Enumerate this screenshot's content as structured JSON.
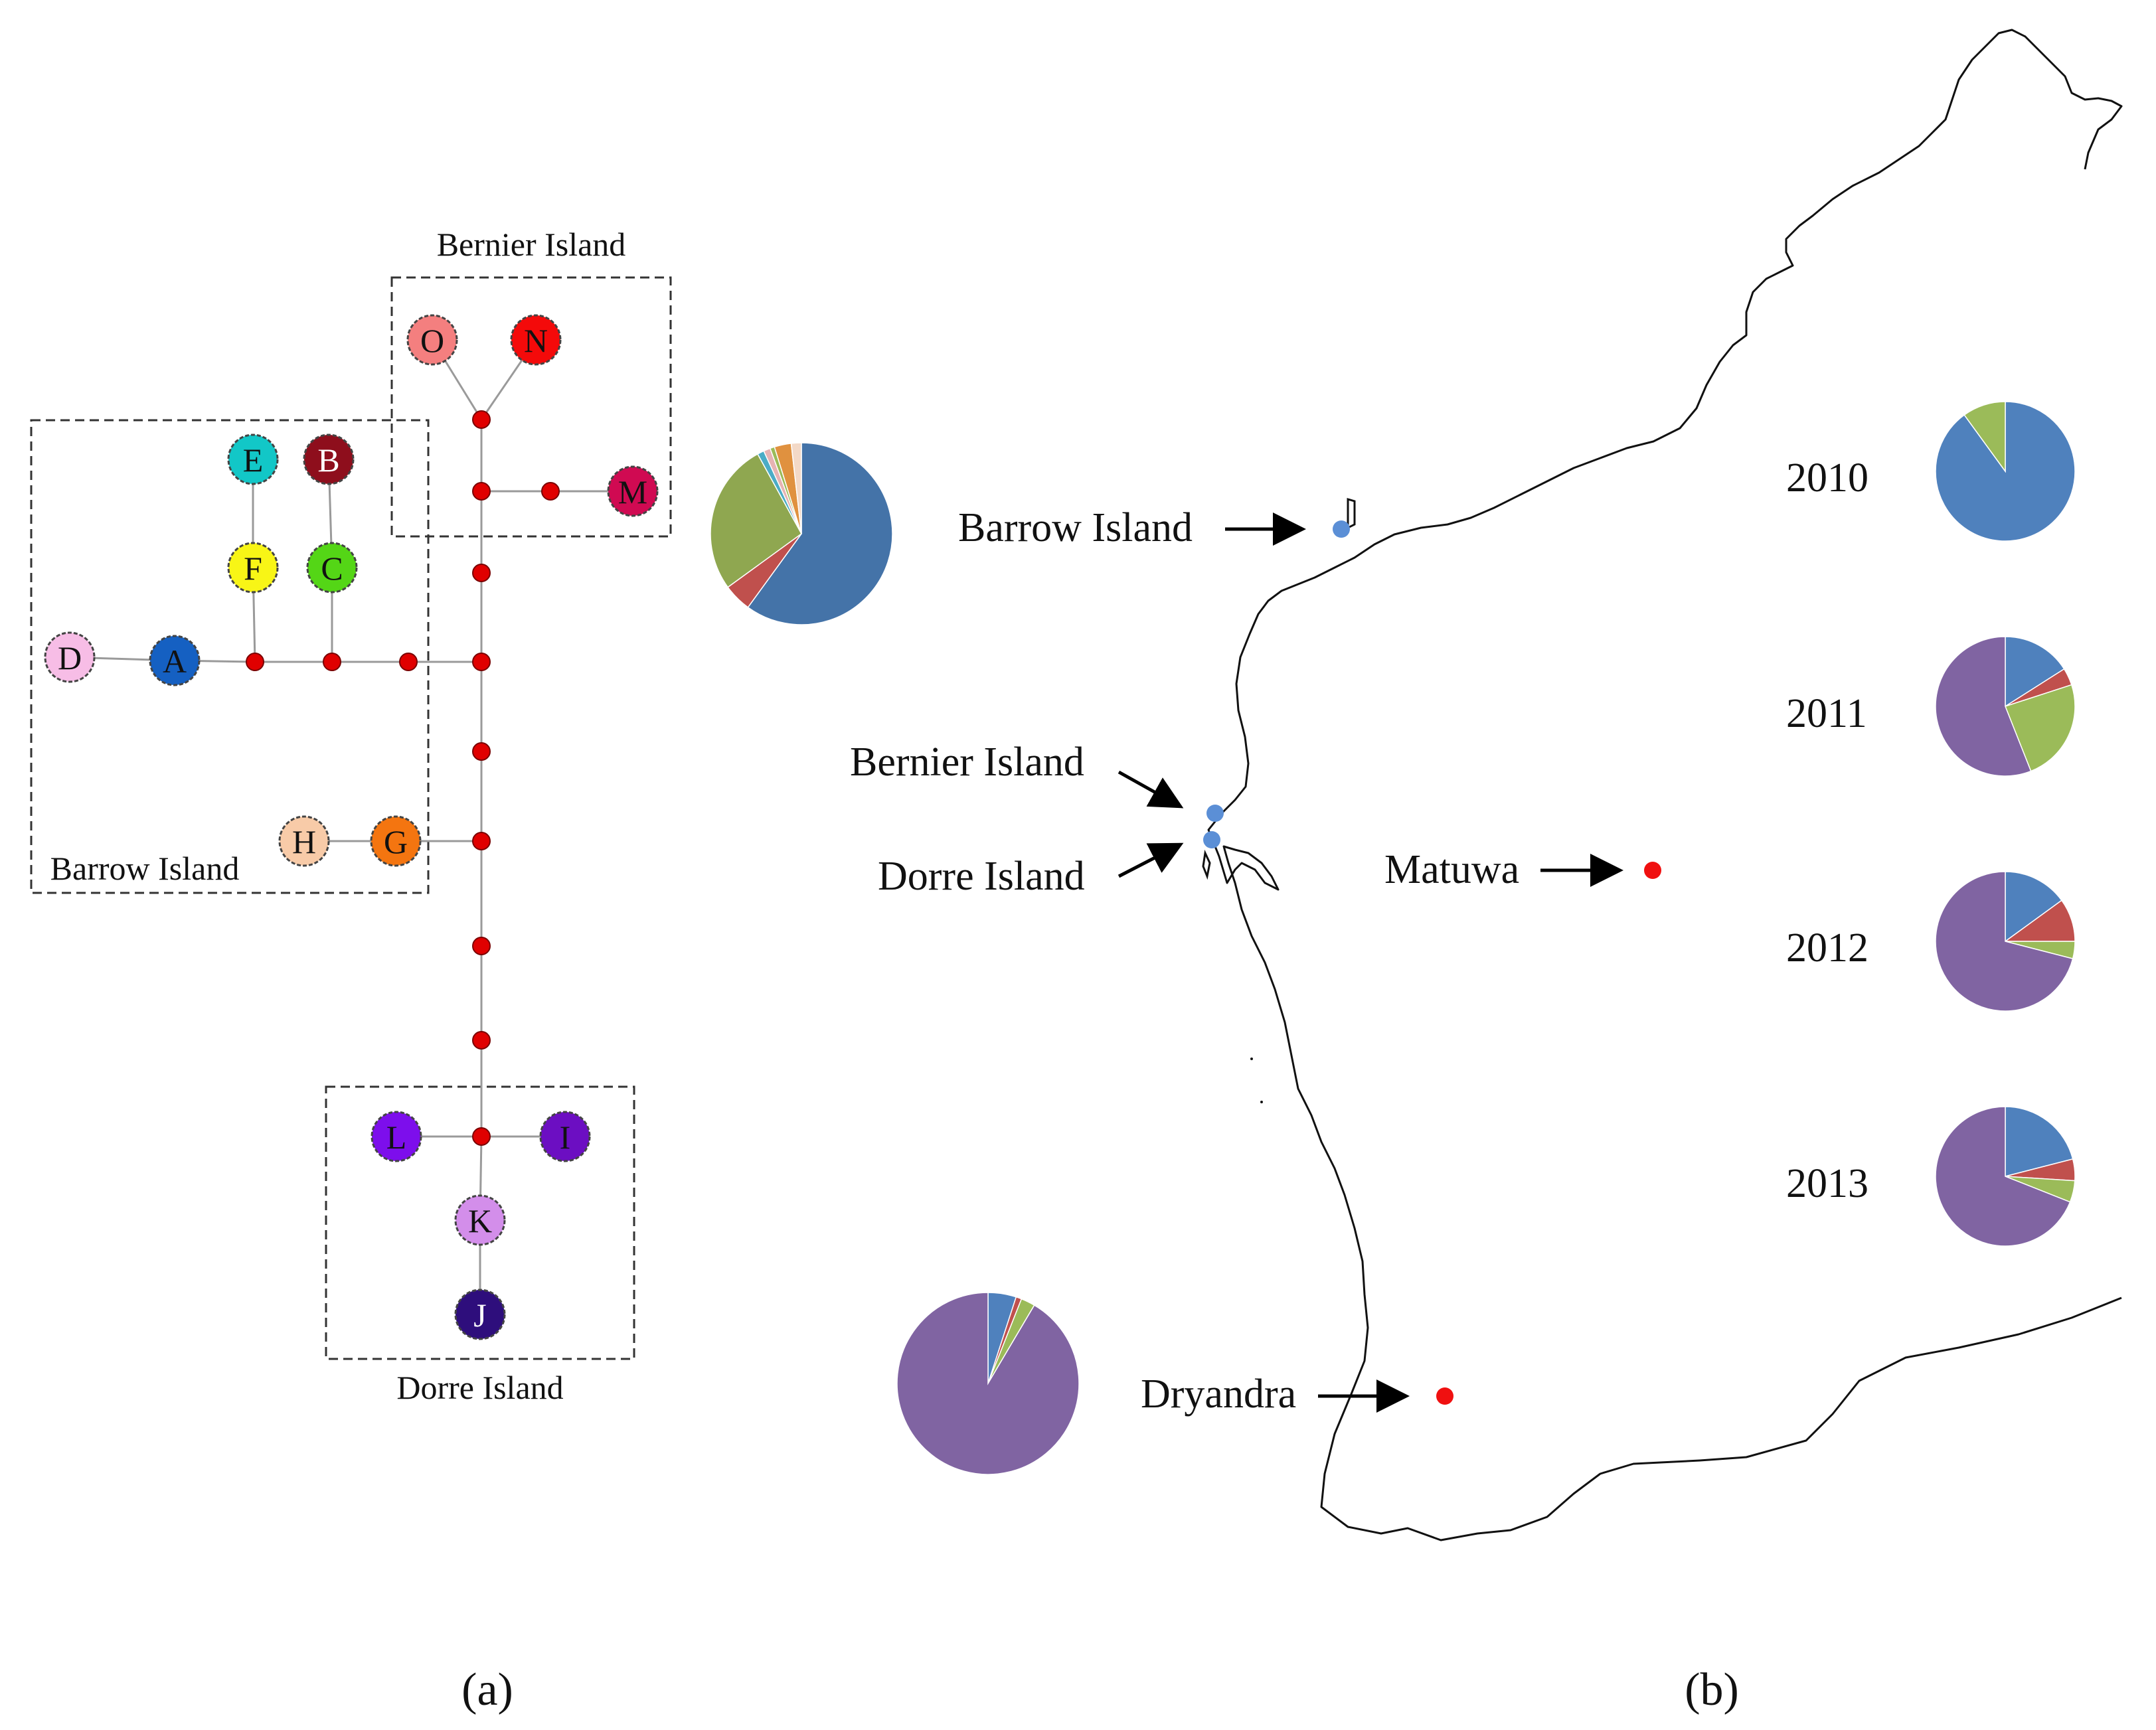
{
  "panel_a": {
    "label": "(a)",
    "group_labels": {
      "bernier": "Bernier Island",
      "barrow": "Barrow Island",
      "dorre": "Dorre Island"
    },
    "haplotypes": {
      "A": {
        "label": "A",
        "color": "#1560C2"
      },
      "B": {
        "label": "B",
        "color": "#8E0E1C"
      },
      "C": {
        "label": "C",
        "color": "#54D616"
      },
      "D": {
        "label": "D",
        "color": "#F7BDE6"
      },
      "E": {
        "label": "E",
        "color": "#12C7C7"
      },
      "F": {
        "label": "F",
        "color": "#F8F516"
      },
      "G": {
        "label": "G",
        "color": "#F47510"
      },
      "H": {
        "label": "H",
        "color": "#F8CBA8"
      },
      "I": {
        "label": "I",
        "color": "#6C0EC2"
      },
      "J": {
        "label": "J",
        "color": "#2E0E7C"
      },
      "K": {
        "label": "K",
        "color": "#D38EEA"
      },
      "L": {
        "label": "L",
        "color": "#7D0EEC"
      },
      "M": {
        "label": "M",
        "color": "#D00A52"
      },
      "N": {
        "label": "N",
        "color": "#F40A0A"
      },
      "O": {
        "label": "O",
        "color": "#F47F7F"
      }
    },
    "median_vector_color": "#E00000",
    "link_color": "#9A9A9A"
  },
  "panel_b": {
    "label": "(b)",
    "sites": {
      "barrow": {
        "label": "Barrow Island",
        "marker_color": "#5B8FD6"
      },
      "bernier": {
        "label": "Bernier Island",
        "marker_color": "#5B8FD6"
      },
      "dorre": {
        "label": "Dorre Island",
        "marker_color": "#5B8FD6"
      },
      "matuwa": {
        "label": "Matuwa",
        "marker_color": "#F01010"
      },
      "dryandra": {
        "label": "Dryandra",
        "marker_color": "#F01010"
      }
    },
    "years": [
      "2010",
      "2011",
      "2012",
      "2013"
    ]
  },
  "palette": {
    "blue": "#4F81BD",
    "red": "#C0504D",
    "green": "#9BBB59",
    "purple": "#8064A2",
    "orange": "#E0913F",
    "pink": "#E6B3B3",
    "teal": "#4BACC6",
    "steel": "#4473A8"
  },
  "chart_data": [
    {
      "type": "pie",
      "slices": [
        {
          "color": "#4473A8",
          "value": 60
        },
        {
          "color": "#C0504D",
          "value": 5
        },
        {
          "color": "#8FA750",
          "value": 27
        },
        {
          "color": "#4BACC6",
          "value": 1.2
        },
        {
          "color": "#E6B3B3",
          "value": 1.2
        },
        {
          "color": "#9BBB59",
          "value": 0.8
        },
        {
          "color": "#E0913F",
          "value": 3
        },
        {
          "color": "#F3D9C7",
          "value": 1.8
        }
      ]
    },
    {
      "type": "pie",
      "slices": [
        {
          "color": "#4F81BD",
          "value": 5
        },
        {
          "color": "#C0504D",
          "value": 1
        },
        {
          "color": "#9BBB59",
          "value": 2.5
        },
        {
          "color": "#8064A2",
          "value": 91.5
        }
      ]
    },
    {
      "type": "pie",
      "year": "2010",
      "slices": [
        {
          "color": "#4F81BD",
          "value": 90
        },
        {
          "color": "#9BBB59",
          "value": 10
        }
      ]
    },
    {
      "type": "pie",
      "year": "2011",
      "slices": [
        {
          "color": "#4F81BD",
          "value": 16
        },
        {
          "color": "#C0504D",
          "value": 4
        },
        {
          "color": "#9BBB59",
          "value": 24
        },
        {
          "color": "#8064A2",
          "value": 56
        }
      ]
    },
    {
      "type": "pie",
      "year": "2012",
      "slices": [
        {
          "color": "#4F81BD",
          "value": 15
        },
        {
          "color": "#C0504D",
          "value": 10
        },
        {
          "color": "#9BBB59",
          "value": 4
        },
        {
          "color": "#8064A2",
          "value": 71
        }
      ]
    },
    {
      "type": "pie",
      "year": "2013",
      "slices": [
        {
          "color": "#4F81BD",
          "value": 21
        },
        {
          "color": "#C0504D",
          "value": 5
        },
        {
          "color": "#9BBB59",
          "value": 5
        },
        {
          "color": "#8064A2",
          "value": 69
        }
      ]
    }
  ]
}
